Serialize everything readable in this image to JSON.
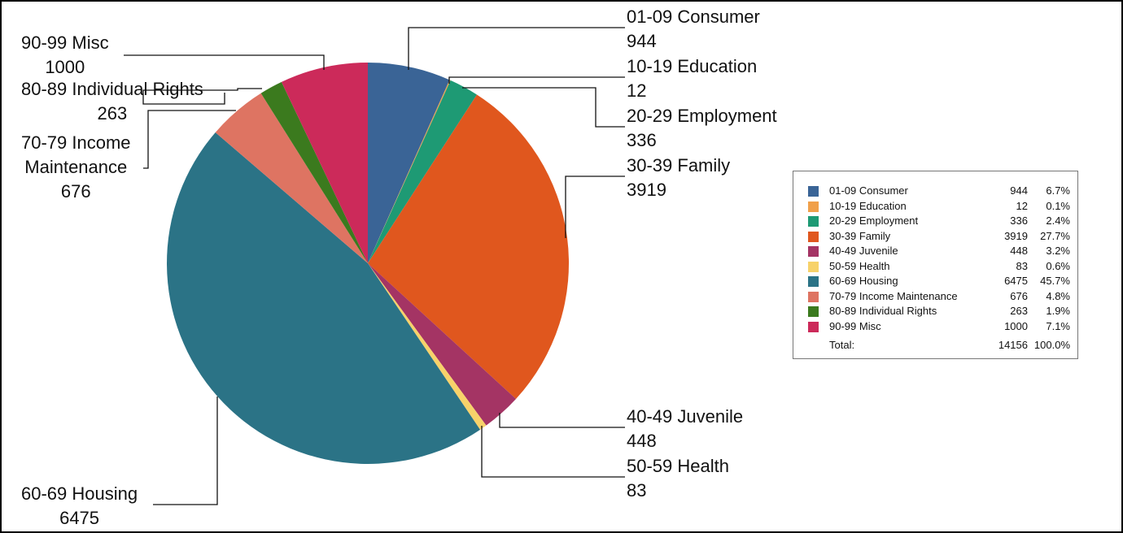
{
  "chart_data": {
    "type": "pie",
    "title": "",
    "slices": [
      {
        "label": "01-09 Consumer",
        "legend_label": "01-09 Consumer",
        "value": 944,
        "percent": "6.7%",
        "color": "#3a6496",
        "callout_lines": [
          "01-09 Consumer",
          "944"
        ]
      },
      {
        "label": "10-19 Education",
        "legend_label": "10-19 Education",
        "value": 12,
        "percent": "0.1%",
        "color": "#f0a04a",
        "callout_lines": [
          "10-19 Education",
          "12"
        ]
      },
      {
        "label": "20-29 Employment",
        "legend_label": "20-29 Employment",
        "value": 336,
        "percent": "2.4%",
        "color": "#1e9a74",
        "callout_lines": [
          "20-29 Employment",
          "336"
        ]
      },
      {
        "label": "30-39 Family",
        "legend_label": "30-39 Family",
        "value": 3919,
        "percent": "27.7%",
        "color": "#e0571e",
        "callout_lines": [
          "30-39 Family",
          "3919"
        ]
      },
      {
        "label": "40-49 Juvenile",
        "legend_label": "40-49 Juvenile",
        "value": 448,
        "percent": "3.2%",
        "color": "#a43464",
        "callout_lines": [
          "40-49 Juvenile",
          "448"
        ]
      },
      {
        "label": "50-59 Health",
        "legend_label": "50-59 Health",
        "value": 83,
        "percent": "0.6%",
        "color": "#f7d26a",
        "callout_lines": [
          "50-59 Health",
          "83"
        ]
      },
      {
        "label": "60-69 Housing",
        "legend_label": "60-69 Housing",
        "value": 6475,
        "percent": "45.7%",
        "color": "#2b7386",
        "callout_lines": [
          "60-69 Housing",
          "6475"
        ]
      },
      {
        "label": "70-79 Income Maintenance",
        "legend_label": "70-79 Income Maintenance",
        "value": 676,
        "percent": "4.8%",
        "color": "#de7462",
        "callout_lines": [
          "70-79 Income",
          "Maintenance",
          "676"
        ]
      },
      {
        "label": "80-89 Individual Rights",
        "legend_label": "80-89 Individual Rights",
        "value": 263,
        "percent": "1.9%",
        "color": "#3b7a1e",
        "callout_lines": [
          "80-89 Individual Rights",
          "263"
        ]
      },
      {
        "label": "90-99 Misc",
        "legend_label": "90-99 Misc",
        "value": 1000,
        "percent": "7.1%",
        "color": "#cc2a5a",
        "callout_lines": [
          "90-99 Misc",
          "1000"
        ]
      }
    ],
    "total": {
      "label": "Total:",
      "value": 14156,
      "percent": "100.0%"
    },
    "legend_position": "right"
  }
}
